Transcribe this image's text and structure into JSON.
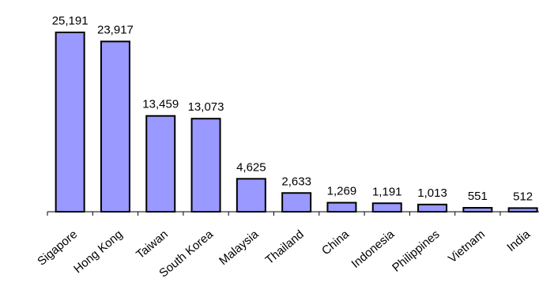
{
  "chart_data": {
    "type": "bar",
    "title": "",
    "xlabel": "",
    "ylabel": "",
    "categories": [
      "Sigapore",
      "Hong Kong",
      "Taiwan",
      "South Korea",
      "Malaysia",
      "Thailand",
      "China",
      "Indonesia",
      "Philippines",
      "Vietnam",
      "India"
    ],
    "values": [
      25191,
      23917,
      13459,
      13073,
      4625,
      2633,
      1269,
      1191,
      1013,
      551,
      512
    ],
    "value_labels": [
      "25,191",
      "23,917",
      "13,459",
      "13,073",
      "4,625",
      "2,633",
      "1,269",
      "1,191",
      "1,013",
      "551",
      "512"
    ],
    "ylim": [
      0,
      25191
    ],
    "grid": false,
    "legend": "none",
    "bar_color": "#9999ff",
    "bar_edge_color": "#000000"
  }
}
